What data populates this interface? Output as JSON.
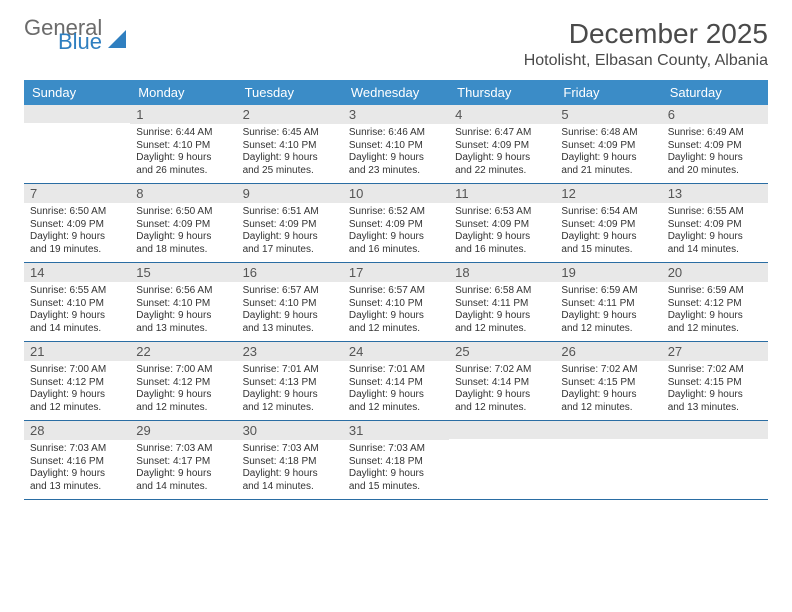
{
  "logo": {
    "line1": "General",
    "line2": "Blue"
  },
  "title": "December 2025",
  "location": "Hotolisht, Elbasan County, Albania",
  "day_headers": [
    "Sunday",
    "Monday",
    "Tuesday",
    "Wednesday",
    "Thursday",
    "Friday",
    "Saturday"
  ],
  "colors": {
    "header_bg": "#3b8cc7",
    "header_text": "#ffffff",
    "date_bg": "#e8e8e8",
    "rule": "#2a6da3",
    "logo_blue": "#2f7fc0",
    "logo_gray": "#6b6b6b"
  },
  "typography": {
    "title_fontsize": 28,
    "location_fontsize": 16,
    "day_header_fontsize": 13,
    "date_fontsize": 13,
    "body_fontsize": 10
  },
  "weeks": [
    [
      {
        "date": null
      },
      {
        "date": "1",
        "sunrise": "Sunrise: 6:44 AM",
        "sunset": "Sunset: 4:10 PM",
        "daylight": "Daylight: 9 hours and 26 minutes."
      },
      {
        "date": "2",
        "sunrise": "Sunrise: 6:45 AM",
        "sunset": "Sunset: 4:10 PM",
        "daylight": "Daylight: 9 hours and 25 minutes."
      },
      {
        "date": "3",
        "sunrise": "Sunrise: 6:46 AM",
        "sunset": "Sunset: 4:10 PM",
        "daylight": "Daylight: 9 hours and 23 minutes."
      },
      {
        "date": "4",
        "sunrise": "Sunrise: 6:47 AM",
        "sunset": "Sunset: 4:09 PM",
        "daylight": "Daylight: 9 hours and 22 minutes."
      },
      {
        "date": "5",
        "sunrise": "Sunrise: 6:48 AM",
        "sunset": "Sunset: 4:09 PM",
        "daylight": "Daylight: 9 hours and 21 minutes."
      },
      {
        "date": "6",
        "sunrise": "Sunrise: 6:49 AM",
        "sunset": "Sunset: 4:09 PM",
        "daylight": "Daylight: 9 hours and 20 minutes."
      }
    ],
    [
      {
        "date": "7",
        "sunrise": "Sunrise: 6:50 AM",
        "sunset": "Sunset: 4:09 PM",
        "daylight": "Daylight: 9 hours and 19 minutes."
      },
      {
        "date": "8",
        "sunrise": "Sunrise: 6:50 AM",
        "sunset": "Sunset: 4:09 PM",
        "daylight": "Daylight: 9 hours and 18 minutes."
      },
      {
        "date": "9",
        "sunrise": "Sunrise: 6:51 AM",
        "sunset": "Sunset: 4:09 PM",
        "daylight": "Daylight: 9 hours and 17 minutes."
      },
      {
        "date": "10",
        "sunrise": "Sunrise: 6:52 AM",
        "sunset": "Sunset: 4:09 PM",
        "daylight": "Daylight: 9 hours and 16 minutes."
      },
      {
        "date": "11",
        "sunrise": "Sunrise: 6:53 AM",
        "sunset": "Sunset: 4:09 PM",
        "daylight": "Daylight: 9 hours and 16 minutes."
      },
      {
        "date": "12",
        "sunrise": "Sunrise: 6:54 AM",
        "sunset": "Sunset: 4:09 PM",
        "daylight": "Daylight: 9 hours and 15 minutes."
      },
      {
        "date": "13",
        "sunrise": "Sunrise: 6:55 AM",
        "sunset": "Sunset: 4:09 PM",
        "daylight": "Daylight: 9 hours and 14 minutes."
      }
    ],
    [
      {
        "date": "14",
        "sunrise": "Sunrise: 6:55 AM",
        "sunset": "Sunset: 4:10 PM",
        "daylight": "Daylight: 9 hours and 14 minutes."
      },
      {
        "date": "15",
        "sunrise": "Sunrise: 6:56 AM",
        "sunset": "Sunset: 4:10 PM",
        "daylight": "Daylight: 9 hours and 13 minutes."
      },
      {
        "date": "16",
        "sunrise": "Sunrise: 6:57 AM",
        "sunset": "Sunset: 4:10 PM",
        "daylight": "Daylight: 9 hours and 13 minutes."
      },
      {
        "date": "17",
        "sunrise": "Sunrise: 6:57 AM",
        "sunset": "Sunset: 4:10 PM",
        "daylight": "Daylight: 9 hours and 12 minutes."
      },
      {
        "date": "18",
        "sunrise": "Sunrise: 6:58 AM",
        "sunset": "Sunset: 4:11 PM",
        "daylight": "Daylight: 9 hours and 12 minutes."
      },
      {
        "date": "19",
        "sunrise": "Sunrise: 6:59 AM",
        "sunset": "Sunset: 4:11 PM",
        "daylight": "Daylight: 9 hours and 12 minutes."
      },
      {
        "date": "20",
        "sunrise": "Sunrise: 6:59 AM",
        "sunset": "Sunset: 4:12 PM",
        "daylight": "Daylight: 9 hours and 12 minutes."
      }
    ],
    [
      {
        "date": "21",
        "sunrise": "Sunrise: 7:00 AM",
        "sunset": "Sunset: 4:12 PM",
        "daylight": "Daylight: 9 hours and 12 minutes."
      },
      {
        "date": "22",
        "sunrise": "Sunrise: 7:00 AM",
        "sunset": "Sunset: 4:12 PM",
        "daylight": "Daylight: 9 hours and 12 minutes."
      },
      {
        "date": "23",
        "sunrise": "Sunrise: 7:01 AM",
        "sunset": "Sunset: 4:13 PM",
        "daylight": "Daylight: 9 hours and 12 minutes."
      },
      {
        "date": "24",
        "sunrise": "Sunrise: 7:01 AM",
        "sunset": "Sunset: 4:14 PM",
        "daylight": "Daylight: 9 hours and 12 minutes."
      },
      {
        "date": "25",
        "sunrise": "Sunrise: 7:02 AM",
        "sunset": "Sunset: 4:14 PM",
        "daylight": "Daylight: 9 hours and 12 minutes."
      },
      {
        "date": "26",
        "sunrise": "Sunrise: 7:02 AM",
        "sunset": "Sunset: 4:15 PM",
        "daylight": "Daylight: 9 hours and 12 minutes."
      },
      {
        "date": "27",
        "sunrise": "Sunrise: 7:02 AM",
        "sunset": "Sunset: 4:15 PM",
        "daylight": "Daylight: 9 hours and 13 minutes."
      }
    ],
    [
      {
        "date": "28",
        "sunrise": "Sunrise: 7:03 AM",
        "sunset": "Sunset: 4:16 PM",
        "daylight": "Daylight: 9 hours and 13 minutes."
      },
      {
        "date": "29",
        "sunrise": "Sunrise: 7:03 AM",
        "sunset": "Sunset: 4:17 PM",
        "daylight": "Daylight: 9 hours and 14 minutes."
      },
      {
        "date": "30",
        "sunrise": "Sunrise: 7:03 AM",
        "sunset": "Sunset: 4:18 PM",
        "daylight": "Daylight: 9 hours and 14 minutes."
      },
      {
        "date": "31",
        "sunrise": "Sunrise: 7:03 AM",
        "sunset": "Sunset: 4:18 PM",
        "daylight": "Daylight: 9 hours and 15 minutes."
      },
      {
        "date": null
      },
      {
        "date": null
      },
      {
        "date": null
      }
    ]
  ]
}
